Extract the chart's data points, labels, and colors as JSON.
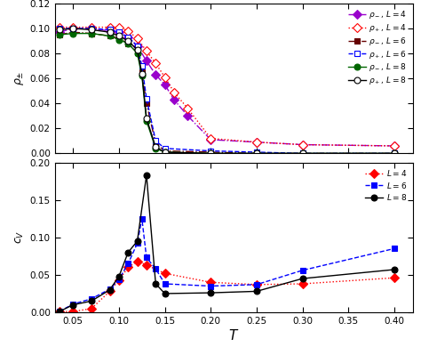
{
  "top_panel": {
    "ylim": [
      0,
      0.12
    ],
    "ylabel": "$\\rho_{\\pm}$",
    "yticks": [
      0,
      0.02,
      0.04,
      0.06,
      0.08,
      0.1,
      0.12
    ],
    "rho_minus_L4": {
      "T": [
        0.035,
        0.05,
        0.07,
        0.09,
        0.1,
        0.11,
        0.12,
        0.13,
        0.14,
        0.15,
        0.16,
        0.175,
        0.2,
        0.25,
        0.3,
        0.4
      ],
      "rho": [
        0.097,
        0.1,
        0.1,
        0.098,
        0.097,
        0.093,
        0.086,
        0.074,
        0.063,
        0.055,
        0.043,
        0.03,
        0.011,
        0.009,
        0.007,
        0.006
      ],
      "color": "#9900cc",
      "linestyle": "-.",
      "marker": "D",
      "filled": true
    },
    "rho_plus_L4": {
      "T": [
        0.035,
        0.05,
        0.07,
        0.09,
        0.1,
        0.11,
        0.12,
        0.13,
        0.14,
        0.15,
        0.16,
        0.175,
        0.2,
        0.25,
        0.3,
        0.4
      ],
      "rho": [
        0.101,
        0.101,
        0.101,
        0.101,
        0.101,
        0.098,
        0.092,
        0.082,
        0.072,
        0.061,
        0.049,
        0.036,
        0.012,
        0.009,
        0.007,
        0.006
      ],
      "color": "#ff0000",
      "linestyle": ":",
      "marker": "D",
      "filled": false
    },
    "rho_minus_L6": {
      "T": [
        0.035,
        0.05,
        0.07,
        0.09,
        0.1,
        0.11,
        0.12,
        0.125,
        0.13,
        0.14,
        0.15,
        0.2,
        0.25,
        0.3,
        0.4
      ],
      "rho": [
        0.095,
        0.097,
        0.096,
        0.094,
        0.092,
        0.088,
        0.081,
        0.065,
        0.04,
        0.008,
        0.002,
        0.001,
        0.0,
        0.0,
        0.0
      ],
      "color": "#660000",
      "linestyle": "-.",
      "marker": "s",
      "filled": true
    },
    "rho_plus_L6": {
      "T": [
        0.035,
        0.05,
        0.07,
        0.09,
        0.1,
        0.11,
        0.12,
        0.125,
        0.13,
        0.14,
        0.15,
        0.2,
        0.25,
        0.3,
        0.4
      ],
      "rho": [
        0.1,
        0.1,
        0.1,
        0.099,
        0.097,
        0.093,
        0.086,
        0.07,
        0.044,
        0.01,
        0.004,
        0.002,
        0.001,
        0.0,
        0.0
      ],
      "color": "#0000ff",
      "linestyle": "--",
      "marker": "s",
      "filled": false
    },
    "rho_minus_L8": {
      "T": [
        0.035,
        0.05,
        0.07,
        0.09,
        0.1,
        0.11,
        0.12,
        0.125,
        0.13,
        0.14,
        0.15,
        0.2,
        0.25,
        0.3,
        0.4
      ],
      "rho": [
        0.095,
        0.096,
        0.096,
        0.094,
        0.091,
        0.088,
        0.08,
        0.062,
        0.026,
        0.004,
        0.001,
        0.0,
        0.0,
        0.0,
        0.0
      ],
      "color": "#006600",
      "linestyle": "-",
      "marker": "o",
      "filled": true
    },
    "rho_plus_L8": {
      "T": [
        0.035,
        0.05,
        0.07,
        0.09,
        0.1,
        0.11,
        0.12,
        0.125,
        0.13,
        0.14,
        0.15,
        0.2,
        0.25,
        0.3,
        0.4
      ],
      "rho": [
        0.099,
        0.1,
        0.099,
        0.097,
        0.094,
        0.09,
        0.083,
        0.064,
        0.028,
        0.005,
        0.001,
        0.0,
        0.0,
        0.0,
        0.0
      ],
      "color": "#000000",
      "linestyle": "-",
      "marker": "o",
      "filled": false
    }
  },
  "bottom_panel": {
    "ylim": [
      0,
      0.2
    ],
    "ylabel": "$c_V$",
    "yticks": [
      0,
      0.05,
      0.1,
      0.15,
      0.2
    ],
    "cv_L4": {
      "T": [
        0.035,
        0.05,
        0.07,
        0.09,
        0.1,
        0.11,
        0.12,
        0.13,
        0.15,
        0.2,
        0.25,
        0.3,
        0.4
      ],
      "cv": [
        0.001,
        0.001,
        0.005,
        0.028,
        0.043,
        0.06,
        0.068,
        0.063,
        0.052,
        0.04,
        0.037,
        0.038,
        0.046
      ],
      "color": "#ff0000",
      "linestyle": ":",
      "marker": "D",
      "filled": true
    },
    "cv_L6": {
      "T": [
        0.035,
        0.05,
        0.07,
        0.09,
        0.1,
        0.11,
        0.12,
        0.125,
        0.13,
        0.14,
        0.15,
        0.2,
        0.25,
        0.3,
        0.4
      ],
      "cv": [
        0.001,
        0.011,
        0.018,
        0.031,
        0.044,
        0.065,
        0.092,
        0.125,
        0.073,
        0.058,
        0.038,
        0.035,
        0.037,
        0.056,
        0.085
      ],
      "color": "#0000ff",
      "linestyle": "--",
      "marker": "s",
      "filled": true
    },
    "cv_L8": {
      "T": [
        0.035,
        0.05,
        0.07,
        0.09,
        0.1,
        0.11,
        0.12,
        0.13,
        0.14,
        0.15,
        0.2,
        0.25,
        0.3,
        0.4
      ],
      "cv": [
        0.001,
        0.01,
        0.015,
        0.03,
        0.048,
        0.08,
        0.095,
        0.183,
        0.038,
        0.025,
        0.026,
        0.028,
        0.045,
        0.057
      ],
      "color": "#000000",
      "linestyle": "-",
      "marker": "o",
      "filled": true
    }
  },
  "xlim": [
    0.03,
    0.42
  ],
  "xticks": [
    0.05,
    0.1,
    0.15,
    0.2,
    0.25,
    0.3,
    0.35,
    0.4
  ],
  "xlabel": "$T$",
  "background_color": "#ffffff"
}
